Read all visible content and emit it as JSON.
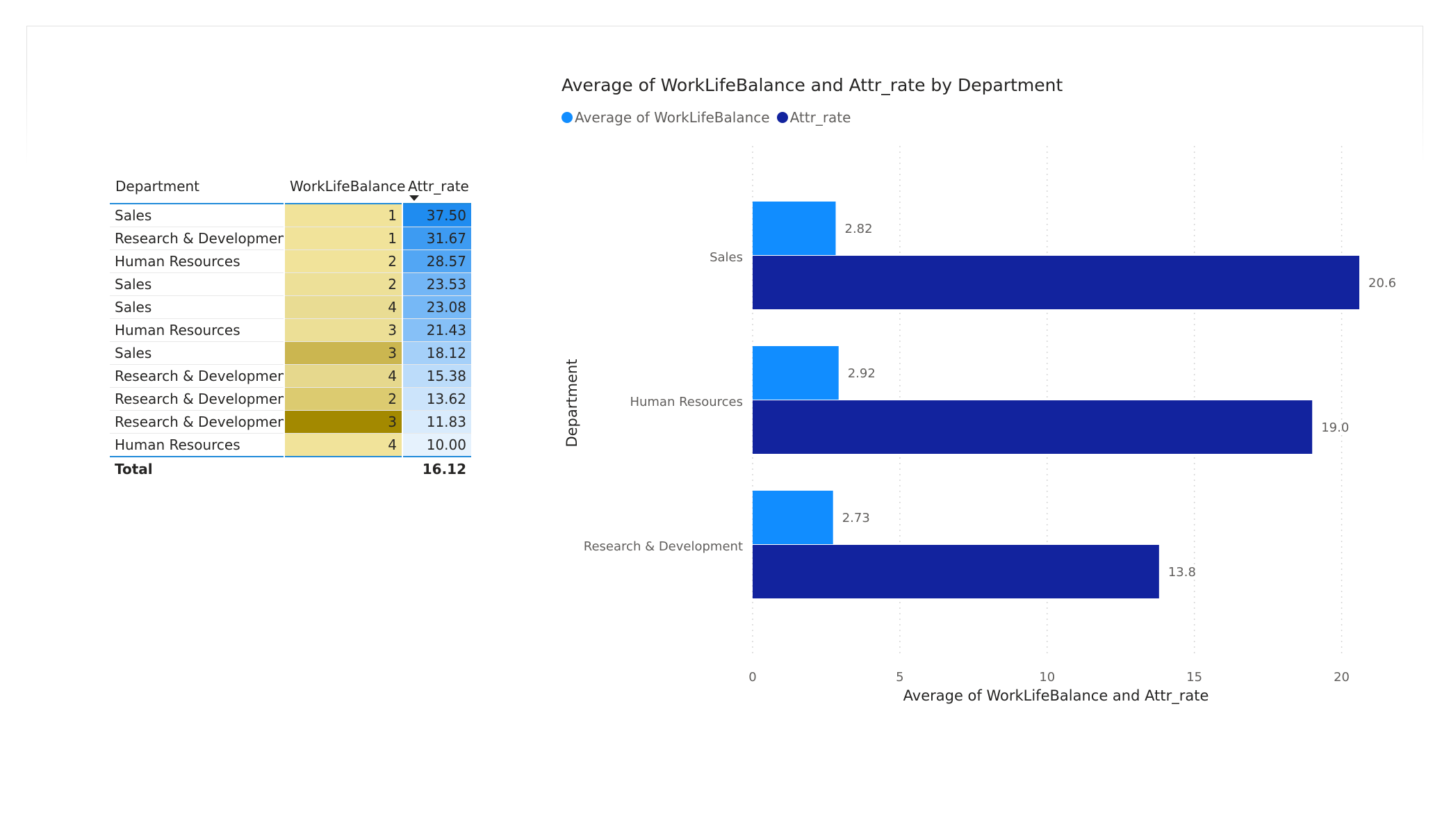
{
  "table": {
    "headers": [
      "Department",
      "WorkLifeBalance",
      "Attr_rate"
    ],
    "rows": [
      {
        "department": "Sales",
        "wlb": "1",
        "attr": "37.50",
        "wlb_color": "#f1e39a",
        "attr_color": "#1f8cf0"
      },
      {
        "department": "Research & Development",
        "wlb": "1",
        "attr": "31.67",
        "wlb_color": "#f1e39a",
        "attr_color": "#3d9bf2"
      },
      {
        "department": "Human Resources",
        "wlb": "2",
        "attr": "28.57",
        "wlb_color": "#f1e39a",
        "attr_color": "#52a6f4"
      },
      {
        "department": "Sales",
        "wlb": "2",
        "attr": "23.53",
        "wlb_color": "#ede098",
        "attr_color": "#73b6f6"
      },
      {
        "department": "Sales",
        "wlb": "4",
        "attr": "23.08",
        "wlb_color": "#e9dc93",
        "attr_color": "#76b8f6"
      },
      {
        "department": "Human Resources",
        "wlb": "3",
        "attr": "21.43",
        "wlb_color": "#ecdf96",
        "attr_color": "#86c0f7"
      },
      {
        "department": "Sales",
        "wlb": "3",
        "attr": "18.12",
        "wlb_color": "#cbb650",
        "attr_color": "#a5d0f9"
      },
      {
        "department": "Research & Development",
        "wlb": "4",
        "attr": "15.38",
        "wlb_color": "#e6d88d",
        "attr_color": "#bcdcfa"
      },
      {
        "department": "Research & Development",
        "wlb": "2",
        "attr": "13.62",
        "wlb_color": "#dccb70",
        "attr_color": "#cce4fb"
      },
      {
        "department": "Research & Development",
        "wlb": "3",
        "attr": "11.83",
        "wlb_color": "#a38900",
        "attr_color": "#d9ebfc"
      },
      {
        "department": "Human Resources",
        "wlb": "4",
        "attr": "10.00",
        "wlb_color": "#f1e39a",
        "attr_color": "#e6f2fd"
      }
    ],
    "total_label": "Total",
    "total_attr": "16.12"
  },
  "chart_data": {
    "type": "bar",
    "orientation": "horizontal",
    "title": "Average of WorkLifeBalance and Attr_rate by Department",
    "xlabel": "Average of WorkLifeBalance and Attr_rate",
    "ylabel": "Department",
    "categories": [
      "Sales",
      "Human Resources",
      "Research & Development"
    ],
    "series": [
      {
        "name": "Average of WorkLifeBalance",
        "values": [
          2.82,
          2.92,
          2.73
        ],
        "labels": [
          "2.82",
          "2.92",
          "2.73"
        ],
        "color": "#118dff"
      },
      {
        "name": "Attr_rate",
        "values": [
          20.6,
          19.0,
          13.8
        ],
        "labels": [
          "20.6",
          "19.0",
          "13.8"
        ],
        "color": "#12239e"
      }
    ],
    "xticks": [
      0,
      5,
      10,
      15,
      20
    ],
    "xlim": [
      0,
      20.6
    ],
    "grid": true,
    "legend": "top-left"
  }
}
